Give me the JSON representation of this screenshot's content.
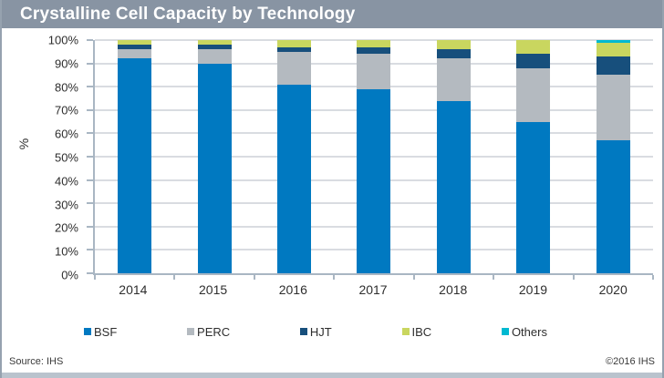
{
  "title": "Crystalline Cell Capacity by Technology",
  "footer": {
    "source": "Source: IHS",
    "copyright": "©2016 IHS"
  },
  "colors": {
    "titlebar_bg": "#8894A3",
    "gridline": "#D9DCE1",
    "axis": "#A9B6C3",
    "bottom_strip": "#B9C3CD"
  },
  "chart_data": {
    "type": "bar",
    "stacked": true,
    "unit": "%",
    "title": "Crystalline Cell Capacity by Technology",
    "xlabel": "",
    "ylabel": "%",
    "ylim": [
      0,
      100
    ],
    "grid": true,
    "legend_position": "bottom",
    "yticks": [
      "0%",
      "10%",
      "20%",
      "30%",
      "40%",
      "50%",
      "60%",
      "70%",
      "80%",
      "90%",
      "100%"
    ],
    "categories": [
      "2014",
      "2015",
      "2016",
      "2017",
      "2018",
      "2019",
      "2020"
    ],
    "series": [
      {
        "name": "BSF",
        "color": "#0079C1",
        "values": [
          92,
          90,
          81,
          79,
          74,
          65,
          57
        ]
      },
      {
        "name": "PERC",
        "color": "#B4BAC0",
        "values": [
          4,
          6,
          14,
          15,
          18,
          23,
          28
        ]
      },
      {
        "name": "HJT",
        "color": "#174F7C",
        "values": [
          2,
          2,
          2,
          3,
          4,
          6,
          8
        ]
      },
      {
        "name": "IBC",
        "color": "#C9D65F",
        "values": [
          2,
          2,
          3,
          3,
          4,
          6,
          6
        ]
      },
      {
        "name": "Others",
        "color": "#00B9D1",
        "values": [
          0,
          0,
          0,
          0,
          0,
          0,
          1
        ]
      }
    ]
  }
}
